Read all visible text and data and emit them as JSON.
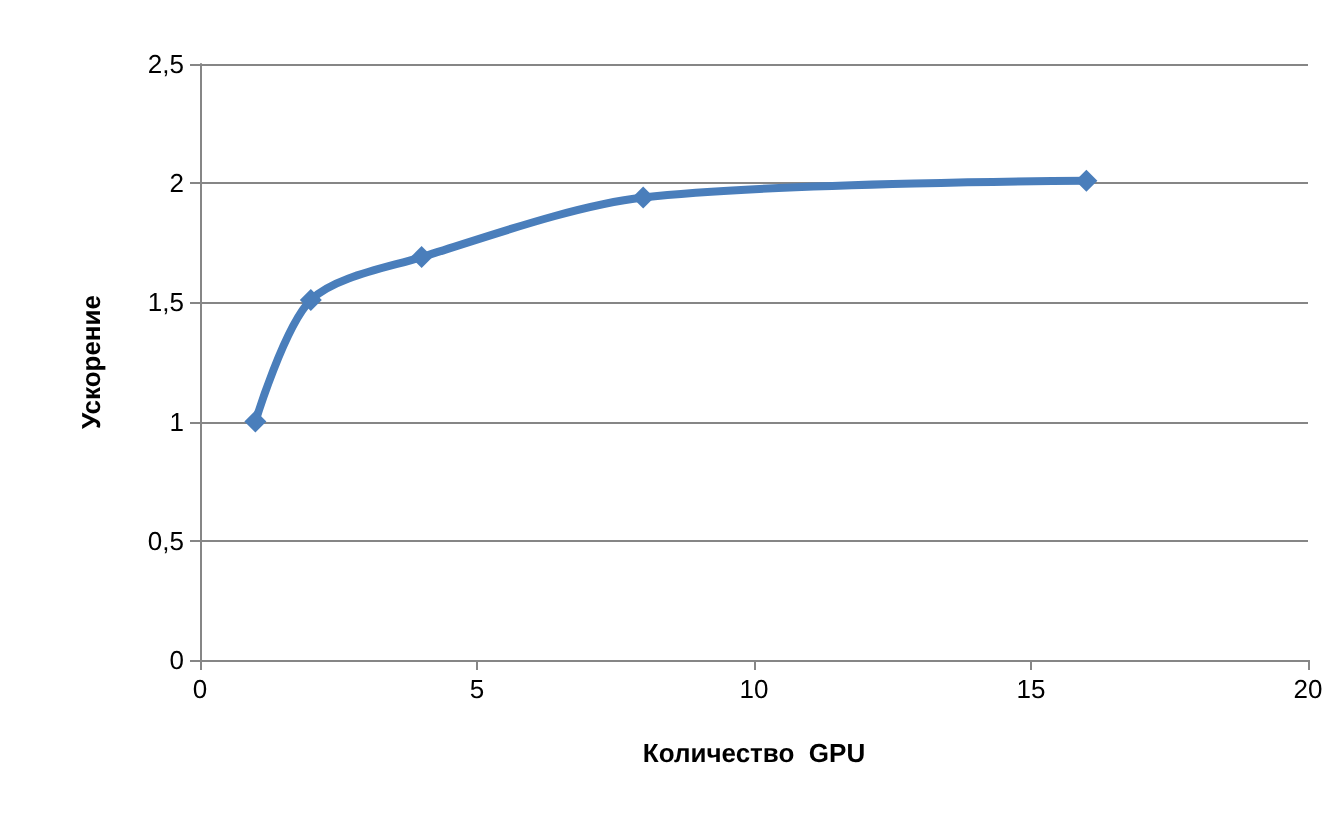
{
  "chart_data": {
    "type": "line",
    "xlabel": "Количество  GPU",
    "ylabel": "Ускорение",
    "x": [
      1,
      2,
      4,
      8,
      16
    ],
    "series": [
      {
        "color": "#4a7ebb",
        "values": [
          1.0,
          1.51,
          1.69,
          1.94,
          2.01
        ]
      }
    ],
    "xlim": [
      0,
      20
    ],
    "xticks": [
      0,
      5,
      10,
      15,
      20
    ],
    "ylim": [
      0,
      2.5
    ],
    "yticks": [
      0,
      {
        "value": 0.5,
        "label": "0,5"
      },
      1,
      {
        "value": 1.5,
        "label": "1,5"
      },
      2,
      {
        "value": 2.5,
        "label": "2,5"
      }
    ],
    "grid": "y",
    "marker": "diamond",
    "line_style": "solid"
  }
}
